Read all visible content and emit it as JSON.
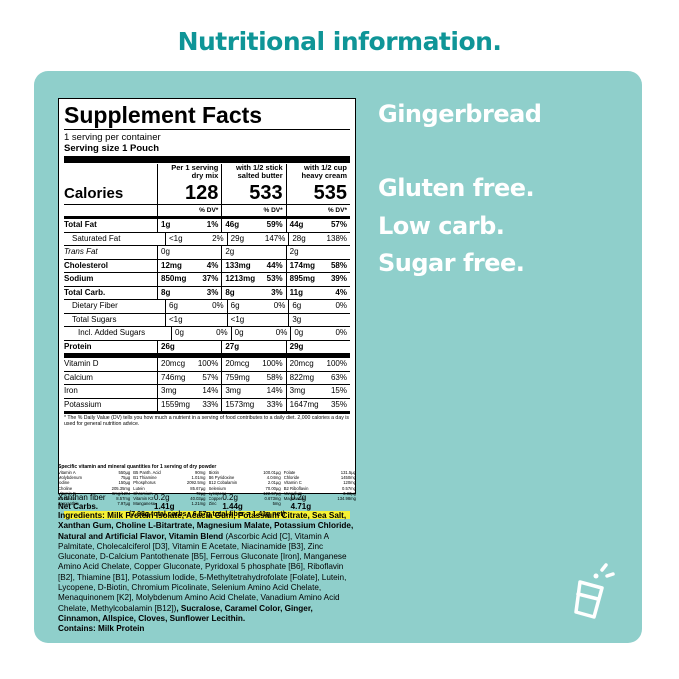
{
  "headline": "Nutritional information.",
  "colors": {
    "teal": "#0f9597",
    "panel": "#8fcfcb",
    "white": "#ffffff",
    "yellow": "#f7f234"
  },
  "side": {
    "flavor": "Gingerbread",
    "claims": [
      "Gluten free.",
      "Low carb.",
      "Sugar free."
    ]
  },
  "label": {
    "title": "Supplement Facts",
    "servings_per_container": "1 serving per container",
    "serving_size": "Serving size 1 Pouch",
    "calories_label": "Calories",
    "columns": [
      {
        "head1": "Per 1 serving",
        "head2": "dry mix",
        "calories": "128"
      },
      {
        "head1": "with 1/2 stick",
        "head2": "salted butter",
        "calories": "533"
      },
      {
        "head1": "with 1/2 cup",
        "head2": "heavy cream",
        "calories": "535"
      }
    ],
    "dv_header": "% DV*",
    "rows": [
      {
        "name": "Total Fat",
        "style": "b",
        "vals": [
          [
            "1g",
            "1%"
          ],
          [
            "46g",
            "59%"
          ],
          [
            "44g",
            "57%"
          ]
        ]
      },
      {
        "name": "Saturated Fat",
        "style": "i1",
        "vals": [
          [
            "<1g",
            "2%"
          ],
          [
            "29g",
            "147%"
          ],
          [
            "28g",
            "138%"
          ]
        ]
      },
      {
        "name": "Trans Fat",
        "style": "it",
        "vals": [
          [
            "0g",
            ""
          ],
          [
            "2g",
            ""
          ],
          [
            "2g",
            ""
          ]
        ]
      },
      {
        "name": "Cholesterol",
        "style": "b",
        "vals": [
          [
            "12mg",
            "4%"
          ],
          [
            "133mg",
            "44%"
          ],
          [
            "174mg",
            "58%"
          ]
        ]
      },
      {
        "name": "Sodium",
        "style": "b",
        "vals": [
          [
            "850mg",
            "37%"
          ],
          [
            "1213mg",
            "53%"
          ],
          [
            "895mg",
            "39%"
          ]
        ]
      },
      {
        "name": "Total Carb.",
        "style": "b",
        "vals": [
          [
            "8g",
            "3%"
          ],
          [
            "8g",
            "3%"
          ],
          [
            "11g",
            "4%"
          ]
        ]
      },
      {
        "name": "Dietary Fiber",
        "style": "i1",
        "vals": [
          [
            "6g",
            "0%"
          ],
          [
            "6g",
            "0%"
          ],
          [
            "6g",
            "0%"
          ]
        ]
      },
      {
        "name": "Total Sugars",
        "style": "i1",
        "vals": [
          [
            "<1g",
            ""
          ],
          [
            "<1g",
            ""
          ],
          [
            "3g",
            ""
          ]
        ]
      },
      {
        "name": "Incl. Added Sugars",
        "style": "i2",
        "vals": [
          [
            "0g",
            "0%"
          ],
          [
            "0g",
            "0%"
          ],
          [
            "0g",
            "0%"
          ]
        ]
      },
      {
        "name": "Protein",
        "style": "b",
        "vals": [
          [
            "26g",
            ""
          ],
          [
            "27g",
            ""
          ],
          [
            "29g",
            ""
          ]
        ]
      },
      {
        "name": "Vitamin D",
        "style": "sect",
        "vals": [
          [
            "20mcg",
            "100%"
          ],
          [
            "20mcg",
            "100%"
          ],
          [
            "20mcg",
            "100%"
          ]
        ]
      },
      {
        "name": "Calcium",
        "style": "",
        "vals": [
          [
            "746mg",
            "57%"
          ],
          [
            "759mg",
            "58%"
          ],
          [
            "822mg",
            "63%"
          ]
        ]
      },
      {
        "name": "Iron",
        "style": "",
        "vals": [
          [
            "3mg",
            "14%"
          ],
          [
            "3mg",
            "14%"
          ],
          [
            "3mg",
            "15%"
          ]
        ]
      },
      {
        "name": "Potassium",
        "style": "",
        "vals": [
          [
            "1559mg",
            "33%"
          ],
          [
            "1573mg",
            "33%"
          ],
          [
            "1647mg",
            "35%"
          ]
        ]
      }
    ],
    "footnote": "* The % Daily Value (DV) tells you how much a nutrient in a serving of food contributes to a daily diet. 2,000 calories a day is used for general nutrition advice.",
    "xanthan": {
      "name": "Xanthan fiber",
      "vals": [
        "0.2g",
        "0.2g",
        "0.2g"
      ]
    },
    "net_carbs": {
      "name": "Net Carbs.",
      "vals": [
        "1.41g",
        "1.44g",
        "4.71g"
      ]
    },
    "net_note": "(7.98g total carbs - 6.57g total fiber = 1.41g net)",
    "spec_title": "Specific vitamin and mineral quantities for 1 serving of dry powder",
    "spec": [
      [
        "Vitamin A",
        "550µg"
      ],
      [
        "B5 Panth. Acid",
        "90mg"
      ],
      [
        "Biotin",
        "100.01µg"
      ],
      [
        "Folate",
        "131.5µg"
      ],
      [
        "Molybdenum",
        "75µg"
      ],
      [
        "B1 Thiamine",
        "1.01mg"
      ],
      [
        "B6 Pyridoxine",
        "4.04mg"
      ],
      [
        "Chloride",
        "1450mg"
      ],
      [
        "Iodine",
        "150µg"
      ],
      [
        "Phosphorus",
        "2092.5mg"
      ],
      [
        "B12 Cobalamin",
        "2.01µg"
      ],
      [
        "Vitamin C",
        "120mg"
      ],
      [
        "Choline",
        "205.35mg"
      ],
      [
        "Lutein",
        "85.67µg"
      ],
      [
        "Selenium",
        "70.00µg"
      ],
      [
        "B2 Riboflavin",
        "0.57mg"
      ],
      [
        "Vitamin E",
        "8mg/12IU"
      ],
      [
        "Chromium",
        "72µg"
      ],
      [
        "Lycopene",
        "122.57µg"
      ],
      [
        "Vanadium",
        "3.33µg"
      ],
      [
        "B3 Niacin",
        "8.57mg"
      ],
      [
        "Vitamin K2",
        "40.03µg"
      ],
      [
        "Copper",
        "0.673mg"
      ],
      [
        "Magnesium",
        "134.98mg"
      ],
      [
        "Zeaxanthin",
        "7.97µg"
      ],
      [
        "",
        ""
      ],
      [
        "",
        ""
      ],
      [
        "",
        ""
      ],
      [
        "Manganese",
        "1.21mg"
      ],
      [
        "Zinc",
        "5mg"
      ]
    ]
  },
  "ingredients": {
    "label": "Ingredients:",
    "bold1": "Milk Protein Isolate, Acacia Gum, Potassium Citrate, Sea Salt, Xanthan Gum, Choline L-Bitartrate, Magnesium Malate, Potassium Chloride, Natural and Artificial Flavor, Vitamin Blend",
    "normal": "(Ascorbic Acid [C], Vitamin A Palmitate, Cholecalciferol [D3], Vitamin E Acetate, Niacinamide [B3], Zinc Gluconate, D-Calcium Pantothenate [B5], Ferrous Gluconate [Iron], Manganese Amino Acid Chelate, Copper Gluconate, Pyridoxal 5 phosphate [B6], Riboflavin [B2], Thiamine [B1], Potassium Iodide, 5-Methyltetrahydrofolate [Folate], Lutein, Lycopene, D-Biotin, Chromium Picolinate, Selenium Amino Acid Chelate, Menaquinonem [K2], Molybdenum Amino Acid Chelate, Vanadium Amino Acid Chelate, Methylcobalamin [B12])",
    "bold2": ", Sucralose, Caramel Color, Ginger, Cinnamon, Allspice, Cloves, Sunflower Lecithin.",
    "contains": "Contains: Milk Protein"
  },
  "icon": "shaker-cup-icon"
}
